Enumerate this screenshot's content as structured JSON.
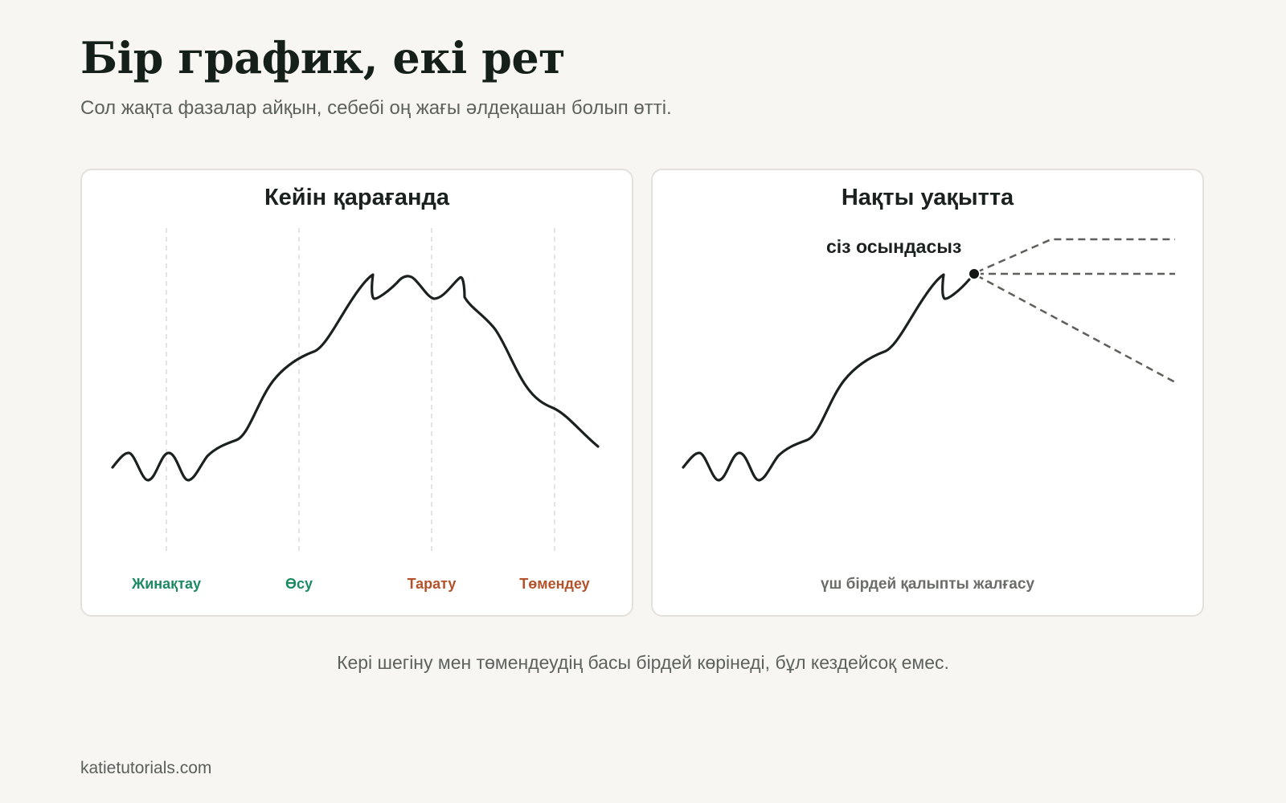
{
  "header": {
    "title": "Бір график, екі рет",
    "subtitle": "Сол жақта фазалар айқын, себебі оң жағы әлдеқашан болып өтті."
  },
  "left_panel": {
    "title": "Кейін қарағанда",
    "phases": [
      "Жинақтау",
      "Өсу",
      "Тарату",
      "Төмендеу"
    ]
  },
  "right_panel": {
    "title": "Нақты уақытта",
    "marker_label": "сіз осындасыз",
    "outcomes_label": "үш бірдей қалыпты жалғасу"
  },
  "caption": "Кері шегіну мен төмендеудің басы бірдей көрінеді, бұл кездейсоқ емес.",
  "footer": "katietutorials.com",
  "colors": {
    "background": "#f7f6f2",
    "line": "#1b211e",
    "phase_rising": "#1e8a63",
    "phase_falling": "#b5512a",
    "projection": "#5e5e5a"
  }
}
